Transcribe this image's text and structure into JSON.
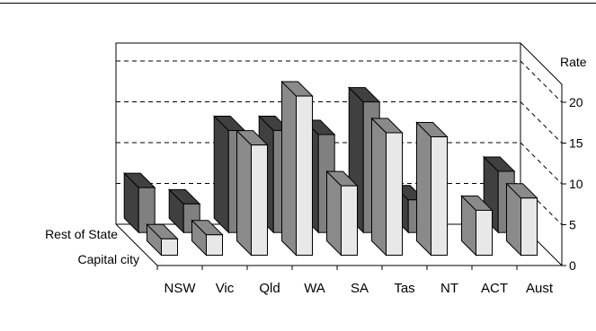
{
  "chart_data": {
    "type": "bar",
    "title": "",
    "ylabel": "Rate",
    "ylim": [
      0,
      20
    ],
    "yticks": [
      0,
      5,
      10,
      15,
      20
    ],
    "grid": true,
    "categories": [
      "NSW",
      "Vic",
      "Qld",
      "WA",
      "SA",
      "Tas",
      "NT",
      "ACT",
      "Aust"
    ],
    "series": [
      {
        "name": "Rest of State",
        "values": [
          5.5,
          3.5,
          12.5,
          12.5,
          12.0,
          16.0,
          4.0,
          null,
          7.5
        ]
      },
      {
        "name": "Capital city",
        "values": [
          2.0,
          2.5,
          13.5,
          19.5,
          8.5,
          15.0,
          14.5,
          5.5,
          7.0
        ]
      }
    ],
    "colors": {
      "rest_front": "#808080",
      "rest_side": "#404040",
      "cap_front": "#e8e8e8",
      "cap_side": "#8a8a8a",
      "top": "#b0b0b0"
    }
  }
}
